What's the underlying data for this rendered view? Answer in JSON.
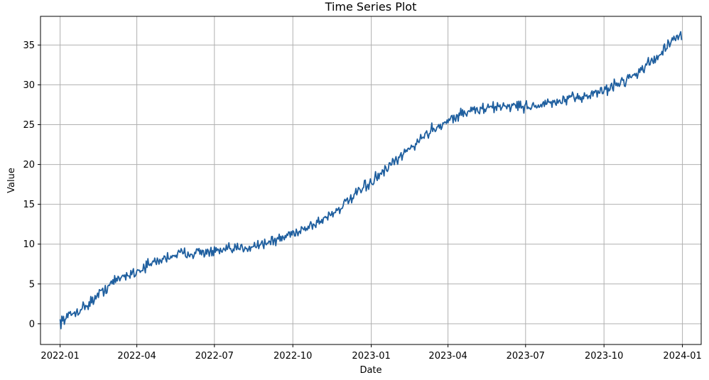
{
  "chart_data": {
    "type": "line",
    "title": "Time Series Plot",
    "xlabel": "Date",
    "ylabel": "Value",
    "grid": true,
    "legend": "none",
    "x_ticks": [
      "2022-01",
      "2022-04",
      "2022-07",
      "2022-10",
      "2023-01",
      "2023-04",
      "2023-07",
      "2023-10",
      "2024-01"
    ],
    "y_ticks": [
      0,
      5,
      10,
      15,
      20,
      25,
      30,
      35
    ],
    "xlim": [
      "2021-12-09",
      "2024-01-23"
    ],
    "ylim": [
      -2.6,
      38.6
    ],
    "series": [
      {
        "color": "#1f5f9f",
        "x": [
          "2022-01-01",
          "2022-01-15",
          "2022-02-01",
          "2022-02-15",
          "2022-03-01",
          "2022-03-15",
          "2022-04-01",
          "2022-04-15",
          "2022-05-01",
          "2022-05-15",
          "2022-06-01",
          "2022-06-15",
          "2022-07-01",
          "2022-07-15",
          "2022-08-01",
          "2022-08-15",
          "2022-09-01",
          "2022-09-15",
          "2022-10-01",
          "2022-10-15",
          "2022-11-01",
          "2022-11-15",
          "2022-12-01",
          "2022-12-15",
          "2023-01-01",
          "2023-01-15",
          "2023-02-01",
          "2023-02-15",
          "2023-03-01",
          "2023-03-15",
          "2023-04-01",
          "2023-04-15",
          "2023-05-01",
          "2023-05-15",
          "2023-06-01",
          "2023-06-15",
          "2023-07-01",
          "2023-07-15",
          "2023-08-01",
          "2023-08-15",
          "2023-09-01",
          "2023-09-15",
          "2023-10-01",
          "2023-10-15",
          "2023-11-01",
          "2023-11-15",
          "2023-12-01",
          "2023-12-15",
          "2023-12-31"
        ],
        "y": [
          0.3,
          1.2,
          2.3,
          3.6,
          5.0,
          5.9,
          6.6,
          7.4,
          8.1,
          8.7,
          8.9,
          9.0,
          9.0,
          9.2,
          9.5,
          9.8,
          10.2,
          10.6,
          11.4,
          12.0,
          12.8,
          13.8,
          15.0,
          16.3,
          17.8,
          19.0,
          20.6,
          22.0,
          23.3,
          24.5,
          25.5,
          26.3,
          26.8,
          27.0,
          27.3,
          27.4,
          27.3,
          27.4,
          27.7,
          28.0,
          28.4,
          28.8,
          29.3,
          30.0,
          31.0,
          32.0,
          33.4,
          35.0,
          36.2
        ]
      }
    ]
  }
}
